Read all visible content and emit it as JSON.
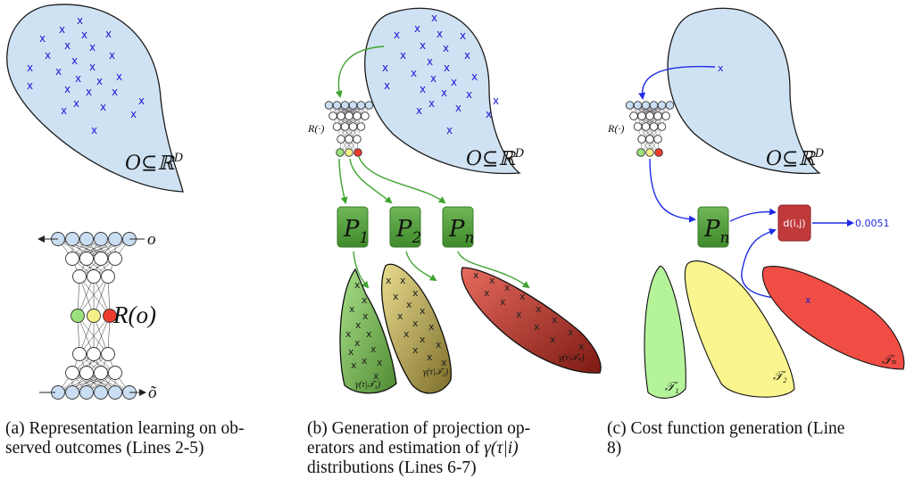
{
  "panel_a": {
    "space_label": "O⊆ℝ",
    "space_sup": "D",
    "output_label": "o",
    "repr_label": "R(o)",
    "input_label": "õ",
    "caption": {
      "l1": "(a) Representation learning on ob-",
      "l2": "served outcomes (Lines 2-5)"
    }
  },
  "panel_b": {
    "space_label": "O⊆ℝ",
    "space_sup": "D",
    "net_label": "R(·)",
    "ops": [
      {
        "base": "P",
        "sub": "1"
      },
      {
        "base": "P",
        "sub": "2"
      },
      {
        "base": "P",
        "sub": "n"
      }
    ],
    "dists": [
      {
        "label": "γ(τ|𝒯₁)"
      },
      {
        "label": "γ(τ|𝒯₂)"
      },
      {
        "label": "γ(τ|𝒯ₙ)"
      }
    ],
    "caption": {
      "l1": "(b) Generation of projection op-",
      "l2a": "erators and estimation of ",
      "l2m": "γ(τ|i)",
      "l3": "distributions (Lines 6-7)"
    }
  },
  "panel_c": {
    "space_label": "O⊆ℝ",
    "space_sup": "D",
    "net_label": "R(·)",
    "op": {
      "base": "P",
      "sub": "n"
    },
    "cost_label": "d(i,j)",
    "cost_value": "0.0051",
    "tasks": [
      "𝒯₁",
      "𝒯₂",
      "𝒯ₙ"
    ],
    "caption": {
      "l1": "(c) Cost function generation (Line",
      "l2": "8)"
    }
  },
  "colors": {
    "blob": "#cfe2f3",
    "cross": "#1a1ad6",
    "green_arrow": "#3ea32f",
    "blue_arrow": "#1e2be6",
    "op_box": "#4f9a3a",
    "cost_box": "#c0393b",
    "node_green": "#9be27c",
    "node_yellow": "#f6ef8a",
    "node_red": "#ee3b2f"
  }
}
